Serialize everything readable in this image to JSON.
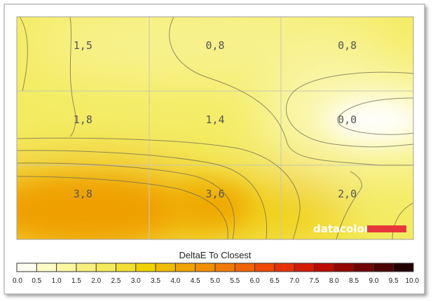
{
  "chart_data": {
    "type": "heatmap",
    "title": "",
    "grid": true,
    "rows": 3,
    "cols": 3,
    "values": [
      [
        "1,5",
        "0,8",
        "0,8"
      ],
      [
        "1,8",
        "1,4",
        "0,0"
      ],
      [
        "3,8",
        "3,6",
        "2,0"
      ]
    ],
    "colorbar": {
      "title": "DeltaE To Closest",
      "ticks": [
        "0.0",
        "0.5",
        "1.0",
        "1.5",
        "2.0",
        "2.5",
        "3.0",
        "3.5",
        "4.0",
        "4.5",
        "5.0",
        "5.5",
        "6.0",
        "6.5",
        "7.0",
        "7.5",
        "8.0",
        "8.5",
        "9.0",
        "9.5",
        "10.0"
      ],
      "colors": [
        "#fffff2",
        "#fdfbc6",
        "#fbf7a3",
        "#f7f07c",
        "#f4ea5c",
        "#f1df33",
        "#f0d200",
        "#f0bc00",
        "#f0a400",
        "#f09000",
        "#f07a00",
        "#f06400",
        "#ef4a00",
        "#e63200",
        "#d41c00",
        "#bc0a00",
        "#960600",
        "#700400",
        "#4c0200",
        "#220000"
      ]
    }
  },
  "brand": {
    "text": "datacolor",
    "accent_color": "#e8373b"
  }
}
